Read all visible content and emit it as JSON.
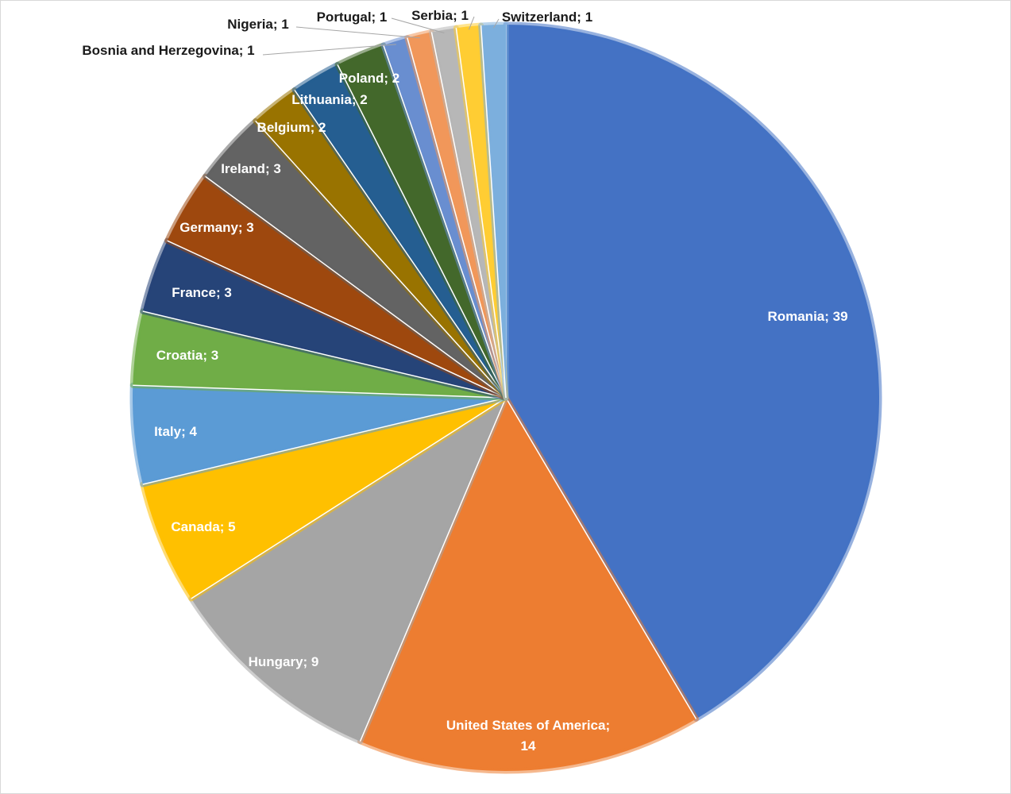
{
  "chart_data": {
    "type": "pie",
    "title": "",
    "separator": "; ",
    "slices": [
      {
        "label": "Romania",
        "value": 39,
        "color": "#4472C4",
        "label_color": "light",
        "display": [
          "Romania; 39"
        ]
      },
      {
        "label": "United States of America",
        "value": 14,
        "color": "#ED7D31",
        "label_color": "light",
        "display": [
          "United States of America;",
          "14"
        ]
      },
      {
        "label": "Hungary",
        "value": 9,
        "color": "#A5A5A5",
        "label_color": "light",
        "display": [
          "Hungary; 9"
        ]
      },
      {
        "label": "Canada",
        "value": 5,
        "color": "#FFC000",
        "label_color": "light",
        "display": [
          "Canada; 5"
        ]
      },
      {
        "label": "Italy",
        "value": 4,
        "color": "#5B9BD5",
        "label_color": "light",
        "display": [
          "Italy; 4"
        ]
      },
      {
        "label": "Croatia",
        "value": 3,
        "color": "#70AD47",
        "label_color": "light",
        "display": [
          "Croatia; 3"
        ]
      },
      {
        "label": "France",
        "value": 3,
        "color": "#264478",
        "label_color": "light",
        "display": [
          "France; 3"
        ]
      },
      {
        "label": "Germany",
        "value": 3,
        "color": "#9E480E",
        "label_color": "light",
        "display": [
          "Germany; 3"
        ]
      },
      {
        "label": "Ireland",
        "value": 3,
        "color": "#636363",
        "label_color": "light",
        "display": [
          "Ireland; 3"
        ]
      },
      {
        "label": "Belgium",
        "value": 2,
        "color": "#997300",
        "label_color": "light",
        "display": [
          "Belgium; 2"
        ]
      },
      {
        "label": "Lithuania",
        "value": 2,
        "color": "#255E91",
        "label_color": "light",
        "display": [
          "Lithuania; 2"
        ]
      },
      {
        "label": "Poland",
        "value": 2,
        "color": "#43682B",
        "label_color": "light",
        "display": [
          "Poland;  2"
        ]
      },
      {
        "label": "Bosnia and Herzegovina",
        "value": 1,
        "color": "#698ED0",
        "label_color": "dark",
        "display": [
          "Bosnia and  Herzegovina; 1"
        ]
      },
      {
        "label": "Nigeria",
        "value": 1,
        "color": "#F1975A",
        "label_color": "dark",
        "display": [
          "Nigeria; 1"
        ]
      },
      {
        "label": "Portugal",
        "value": 1,
        "color": "#B7B7B7",
        "label_color": "dark",
        "display": [
          "Portugal;  1"
        ]
      },
      {
        "label": "Serbia",
        "value": 1,
        "color": "#FFCD33",
        "label_color": "dark",
        "display": [
          "Serbia; 1"
        ]
      },
      {
        "label": "Switzerland",
        "value": 1,
        "color": "#7CAFDD",
        "label_color": "dark",
        "display": [
          "Switzerland; 1"
        ]
      }
    ],
    "legend": "none",
    "data_labels": "category; value"
  }
}
